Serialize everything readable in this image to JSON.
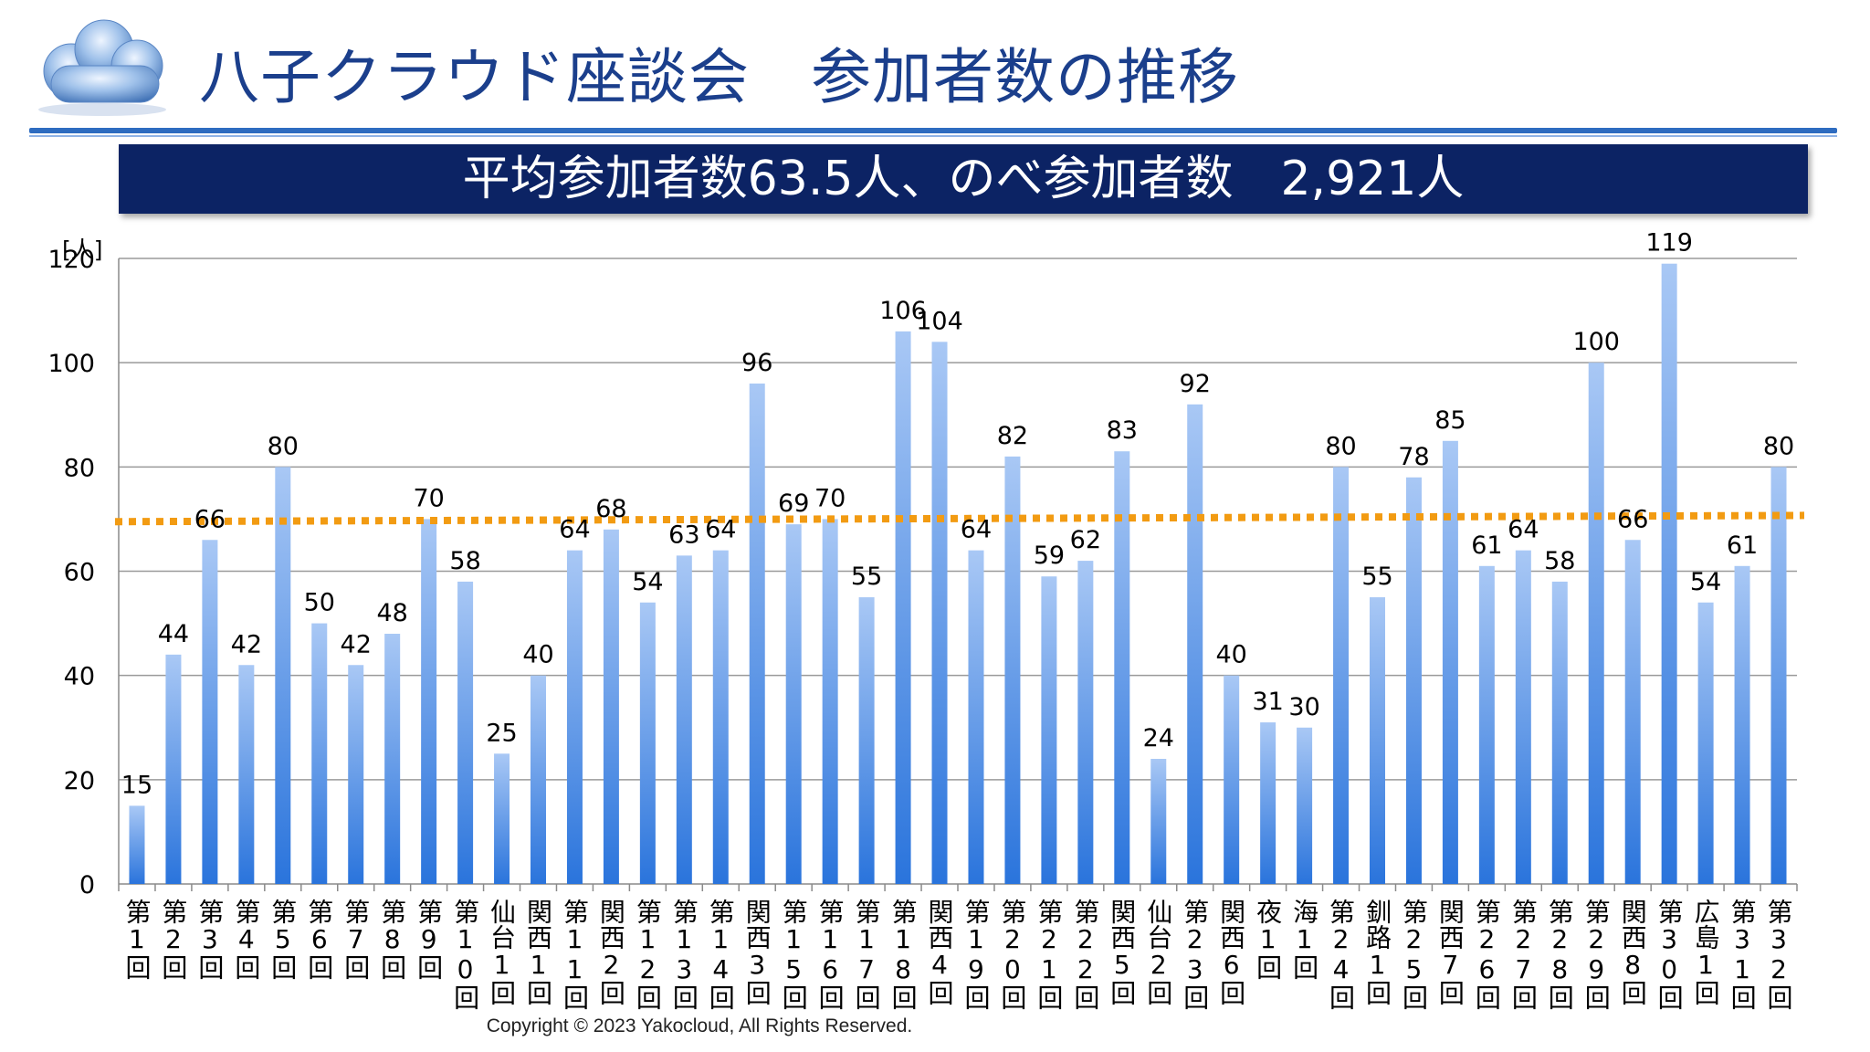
{
  "header": {
    "title": "八子クラウド座談会　参加者数の推移",
    "banner": "平均参加者数63.5人、のべ参加者数　2,921人"
  },
  "footer": {
    "copyright": "Copyright © 2023 Yakocloud, All Rights Reserved."
  },
  "colors": {
    "title": "#1b3f8c",
    "banner_bg": "#0c2364",
    "bar_top": "#a9c8f5",
    "bar_bottom": "#2a74dc",
    "average_line": "#f29b12"
  },
  "icons": {
    "logo": "cloud-icon"
  },
  "chart_data": {
    "type": "bar",
    "ylabel": "[人]",
    "ylim": [
      0,
      120
    ],
    "yticks": [
      0,
      20,
      40,
      60,
      80,
      100,
      120
    ],
    "grid": true,
    "reference_line": {
      "style": "dotted",
      "value_start": 69.5,
      "value_end": 70.7
    },
    "categories": [
      "第1回",
      "第2回",
      "第3回",
      "第4回",
      "第5回",
      "第6回",
      "第7回",
      "第8回",
      "第9回",
      "第10回",
      "仙台1回",
      "関西1回",
      "第11回",
      "関西2回",
      "第12回",
      "第13回",
      "第14回",
      "関西3回",
      "第15回",
      "第16回",
      "第17回",
      "第18回",
      "関西4回",
      "第19回",
      "第20回",
      "第21回",
      "第22回",
      "関西5回",
      "仙台2回",
      "第23回",
      "関西6回",
      "夜1回",
      "海1回",
      "第24回",
      "釧路1回",
      "第25回",
      "関西7回",
      "第26回",
      "第27回",
      "第28回",
      "第29回",
      "関西8回",
      "第30回",
      "広島1回",
      "第31回",
      "第32回"
    ],
    "values": [
      15,
      44,
      66,
      42,
      80,
      50,
      42,
      48,
      70,
      58,
      25,
      40,
      64,
      68,
      54,
      63,
      64,
      96,
      69,
      70,
      55,
      106,
      104,
      64,
      82,
      59,
      62,
      83,
      24,
      92,
      40,
      31,
      30,
      80,
      55,
      78,
      85,
      61,
      64,
      58,
      100,
      66,
      119,
      54,
      61,
      80
    ]
  }
}
